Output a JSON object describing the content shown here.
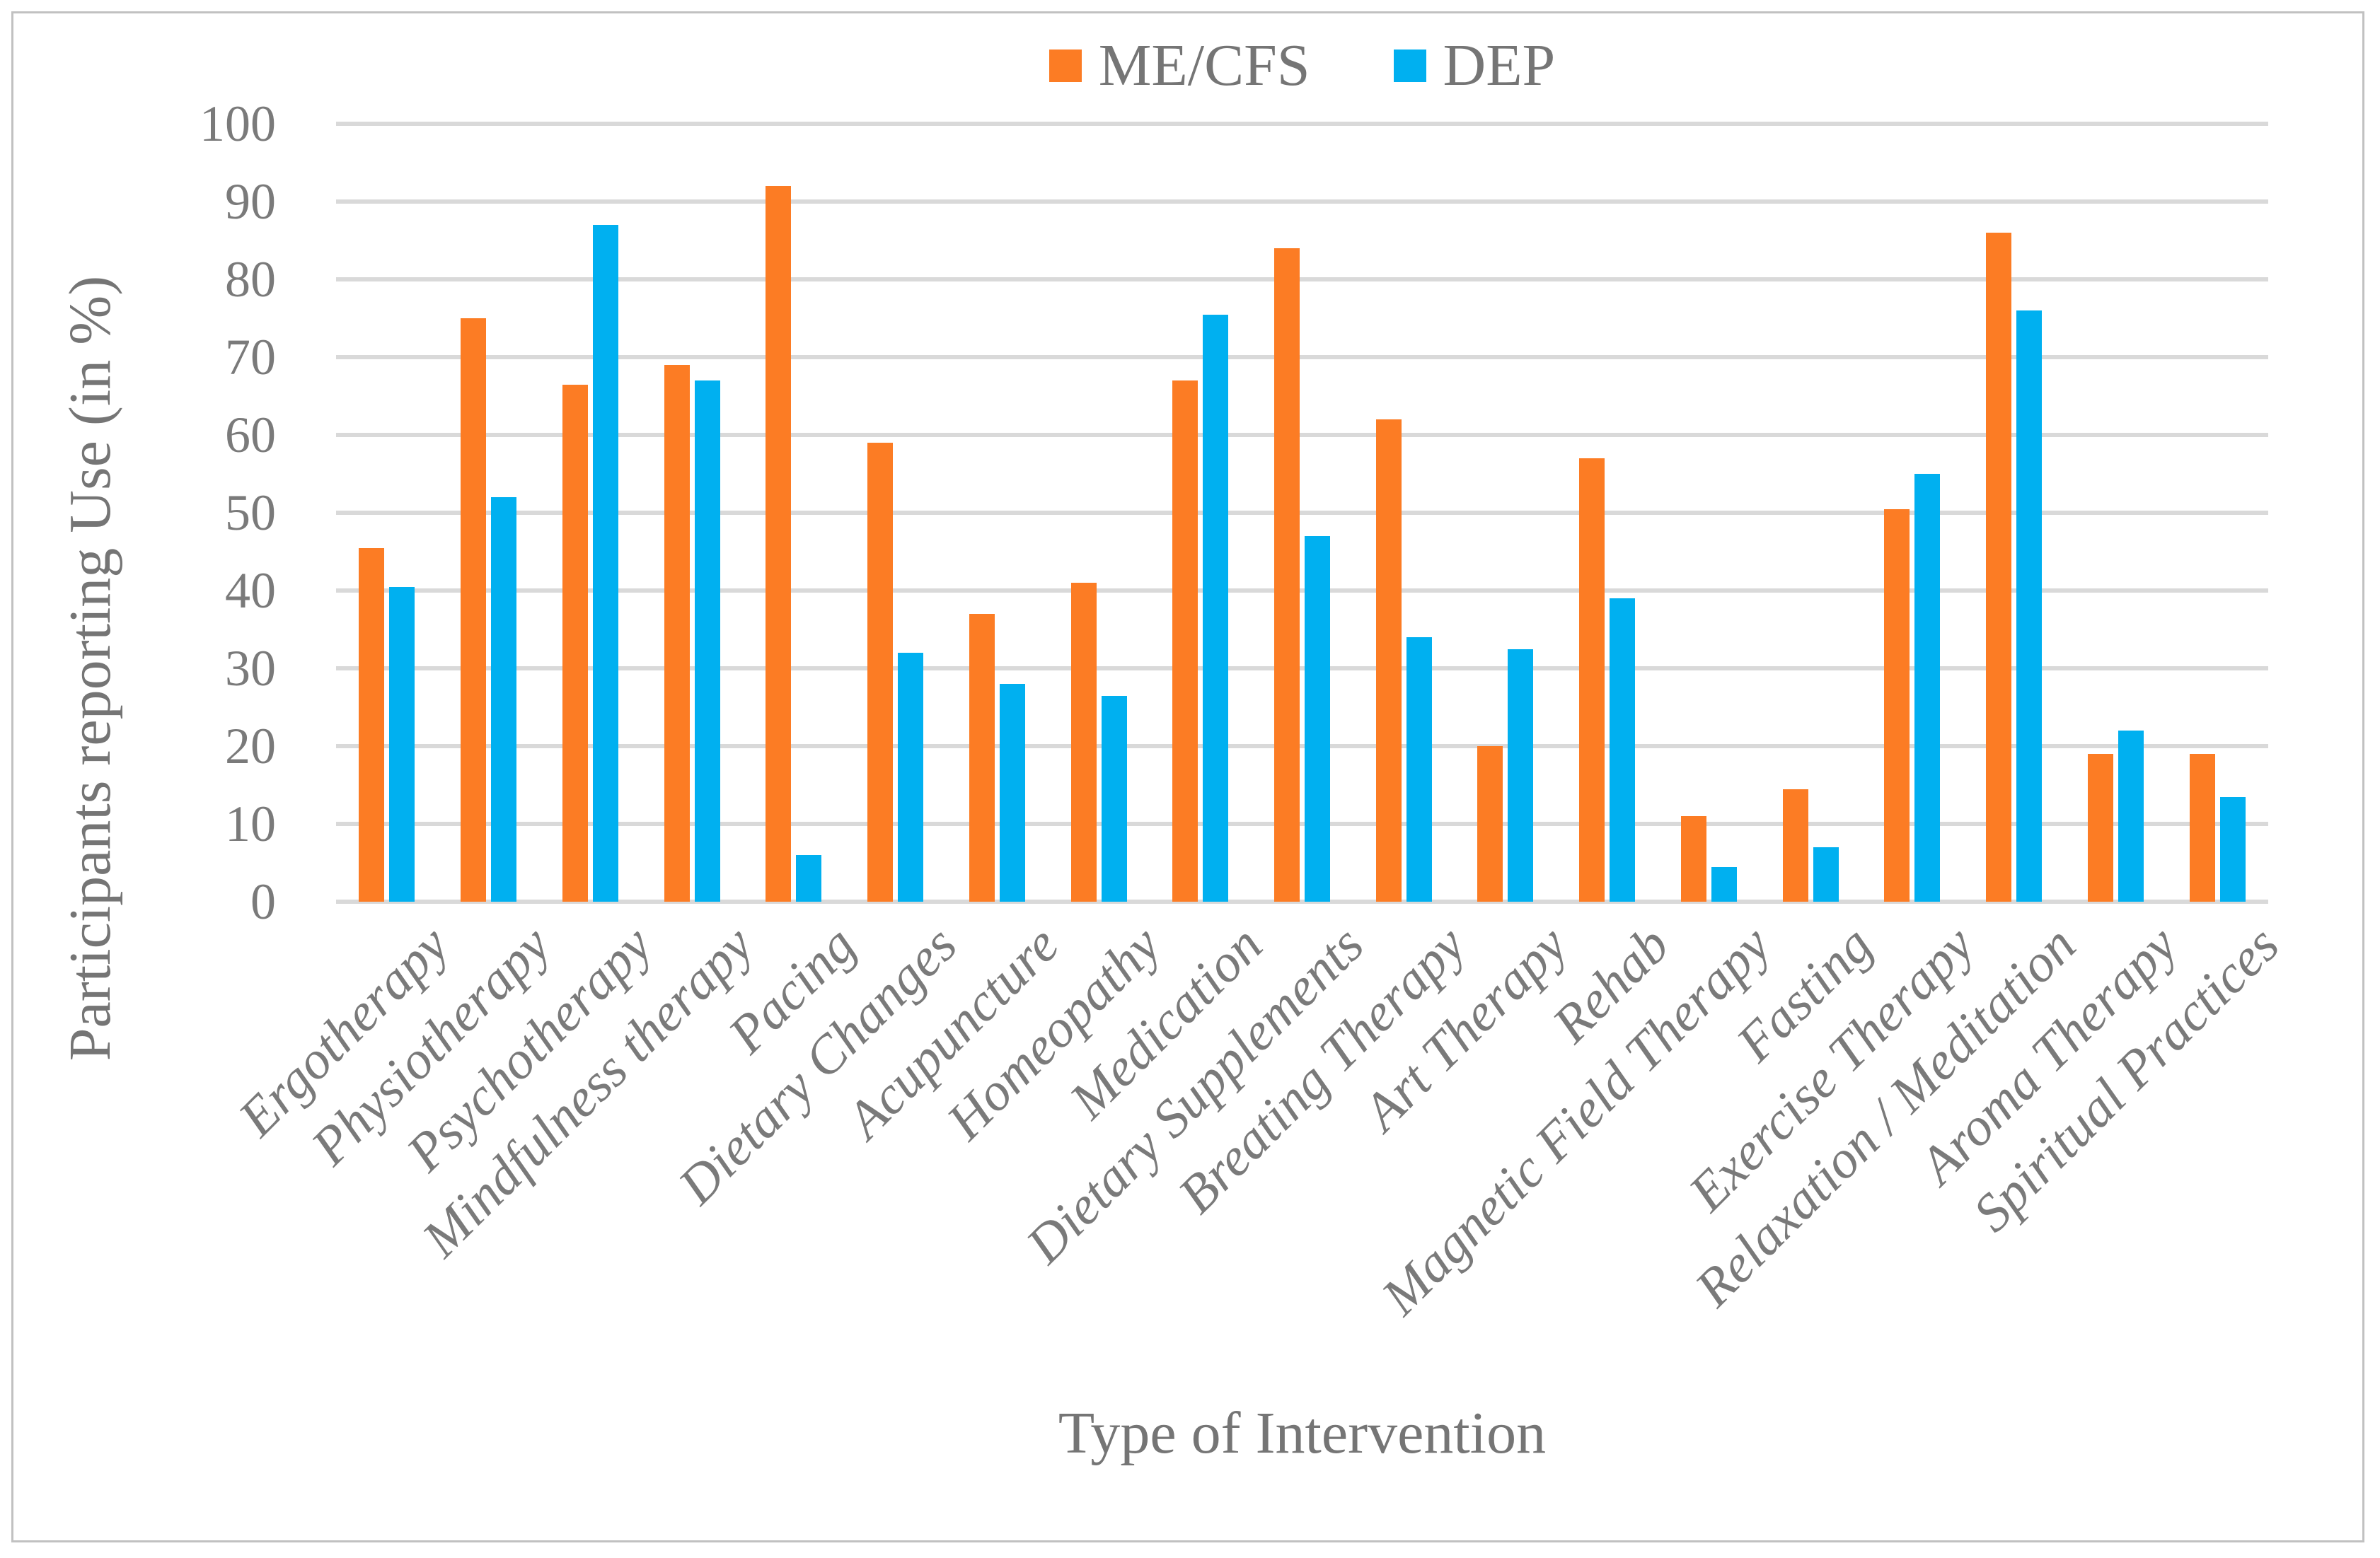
{
  "chart_data": {
    "type": "bar",
    "title": "",
    "xlabel": "Type of Intervention",
    "ylabel": "Participants reporting Use (in %)",
    "ylim": [
      0,
      100
    ],
    "yticks": [
      0,
      10,
      20,
      30,
      40,
      50,
      60,
      70,
      80,
      90,
      100
    ],
    "grid": true,
    "legend_position": "top-center",
    "categories": [
      "Ergotherapy",
      "Physiotherapy",
      "Psychotherapy",
      "Mindfulness therapy",
      "Pacing",
      "Dietary Changes",
      "Acupuncture",
      "Homeopathy",
      "Medication",
      "Dietary Supplements",
      "Breating Therapy",
      "Art Therapy",
      "Rehab",
      "Magnetic Field Therapy",
      "Fasting",
      "Exercise Therapy",
      "Relaxation / Meditation",
      "Aroma Therapy",
      "Spiritual Practices"
    ],
    "series": [
      {
        "name": "ME/CFS",
        "color": "#FC7C24",
        "values": [
          45.5,
          75,
          66.5,
          69,
          92,
          59,
          37,
          41,
          67,
          84,
          62,
          20,
          57,
          11,
          14.5,
          50.5,
          86,
          19,
          19
        ]
      },
      {
        "name": "DEP",
        "color": "#00B0F0",
        "values": [
          40.5,
          52,
          87,
          67,
          6,
          32,
          28,
          26.5,
          75.5,
          47,
          34,
          32.5,
          39,
          4.5,
          7,
          55,
          76,
          22,
          13.5
        ]
      }
    ],
    "colors": {
      "gridline": "#D9D9D9",
      "axis_text": "#7A7A7A",
      "frame_border": "#C1C1C1"
    }
  }
}
